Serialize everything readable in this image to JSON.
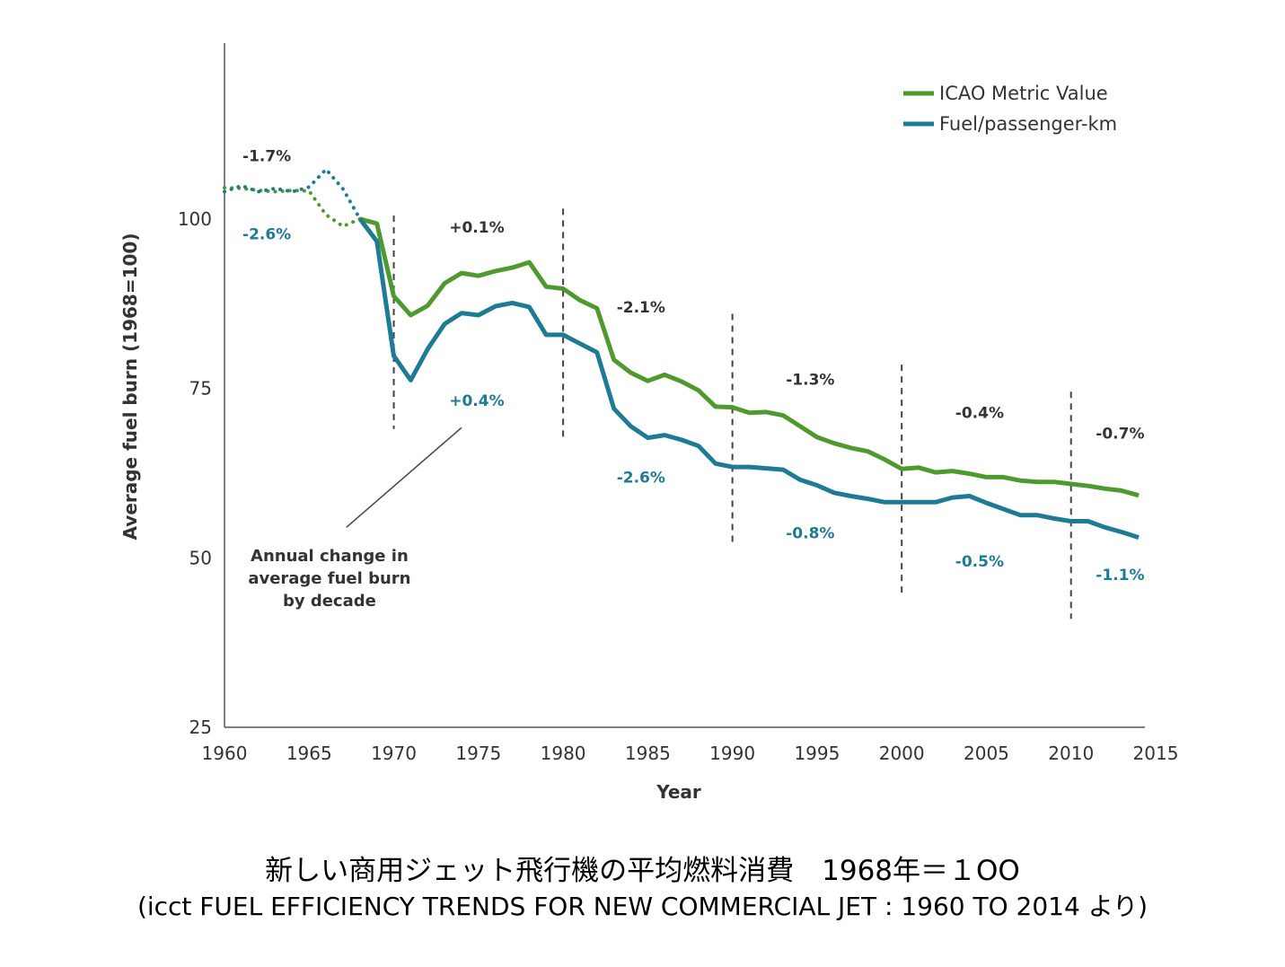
{
  "chart_data": {
    "type": "line",
    "xlabel": "Year",
    "ylabel": "Average fuel burn (1968=100)",
    "xlim": [
      1960,
      2015
    ],
    "ylim": [
      25,
      125
    ],
    "xticks": [
      1960,
      1965,
      1970,
      1975,
      1980,
      1985,
      1990,
      1995,
      2000,
      2005,
      2010,
      2015
    ],
    "yticks": [
      25,
      50,
      75,
      100
    ],
    "grid": false,
    "legend": "top-right",
    "series": [
      {
        "name": "ICAO Metric Value",
        "color": "#4e9a2f",
        "dotted_until": 1968,
        "points": [
          [
            1960,
            104.6
          ],
          [
            1961,
            104.5
          ],
          [
            1962,
            104.2
          ],
          [
            1963,
            104.0
          ],
          [
            1964,
            104.2
          ],
          [
            1965,
            104.1
          ],
          [
            1966,
            100.6
          ],
          [
            1967,
            98.9
          ],
          [
            1968,
            100.0
          ],
          [
            1969,
            99.3
          ],
          [
            1970,
            88.6
          ],
          [
            1971,
            85.8
          ],
          [
            1972,
            87.2
          ],
          [
            1973,
            90.5
          ],
          [
            1974,
            92.0
          ],
          [
            1975,
            91.6
          ],
          [
            1976,
            92.3
          ],
          [
            1977,
            92.8
          ],
          [
            1978,
            93.6
          ],
          [
            1979,
            90.0
          ],
          [
            1980,
            89.7
          ],
          [
            1981,
            88.0
          ],
          [
            1982,
            86.8
          ],
          [
            1983,
            79.2
          ],
          [
            1984,
            77.3
          ],
          [
            1985,
            76.1
          ],
          [
            1986,
            77.0
          ],
          [
            1987,
            76.0
          ],
          [
            1988,
            74.7
          ],
          [
            1989,
            72.3
          ],
          [
            1990,
            72.2
          ],
          [
            1991,
            71.4
          ],
          [
            1992,
            71.5
          ],
          [
            1993,
            71.0
          ],
          [
            1994,
            69.4
          ],
          [
            1995,
            67.8
          ],
          [
            1996,
            66.9
          ],
          [
            1997,
            66.2
          ],
          [
            1998,
            65.7
          ],
          [
            1999,
            64.5
          ],
          [
            2000,
            63.1
          ],
          [
            2001,
            63.3
          ],
          [
            2002,
            62.6
          ],
          [
            2003,
            62.8
          ],
          [
            2004,
            62.4
          ],
          [
            2005,
            61.9
          ],
          [
            2006,
            61.9
          ],
          [
            2007,
            61.4
          ],
          [
            2008,
            61.2
          ],
          [
            2009,
            61.2
          ],
          [
            2010,
            60.9
          ],
          [
            2011,
            60.6
          ],
          [
            2012,
            60.2
          ],
          [
            2013,
            59.9
          ],
          [
            2014,
            59.2
          ]
        ]
      },
      {
        "name": "Fuel/passenger-km",
        "color": "#1f7a93",
        "dotted_until": 1968,
        "points": [
          [
            1960,
            104.0
          ],
          [
            1961,
            104.9
          ],
          [
            1962,
            104.0
          ],
          [
            1963,
            104.5
          ],
          [
            1964,
            104.0
          ],
          [
            1965,
            104.7
          ],
          [
            1966,
            107.3
          ],
          [
            1967,
            104.4
          ],
          [
            1968,
            100.0
          ],
          [
            1969,
            96.7
          ],
          [
            1970,
            79.8
          ],
          [
            1971,
            76.2
          ],
          [
            1972,
            80.8
          ],
          [
            1973,
            84.5
          ],
          [
            1974,
            86.1
          ],
          [
            1975,
            85.8
          ],
          [
            1976,
            87.1
          ],
          [
            1977,
            87.6
          ],
          [
            1978,
            87.0
          ],
          [
            1979,
            82.9
          ],
          [
            1980,
            82.9
          ],
          [
            1981,
            81.6
          ],
          [
            1982,
            80.3
          ],
          [
            1983,
            72.0
          ],
          [
            1984,
            69.4
          ],
          [
            1985,
            67.7
          ],
          [
            1986,
            68.1
          ],
          [
            1987,
            67.4
          ],
          [
            1988,
            66.5
          ],
          [
            1989,
            63.9
          ],
          [
            1990,
            63.4
          ],
          [
            1991,
            63.4
          ],
          [
            1992,
            63.2
          ],
          [
            1993,
            63.0
          ],
          [
            1994,
            61.5
          ],
          [
            1995,
            60.7
          ],
          [
            1996,
            59.6
          ],
          [
            1997,
            59.1
          ],
          [
            1998,
            58.7
          ],
          [
            1999,
            58.2
          ],
          [
            2000,
            58.2
          ],
          [
            2001,
            58.2
          ],
          [
            2002,
            58.2
          ],
          [
            2003,
            58.9
          ],
          [
            2004,
            59.1
          ],
          [
            2005,
            58.1
          ],
          [
            2006,
            57.2
          ],
          [
            2007,
            56.3
          ],
          [
            2008,
            56.3
          ],
          [
            2009,
            55.8
          ],
          [
            2010,
            55.4
          ],
          [
            2011,
            55.4
          ],
          [
            2012,
            54.5
          ],
          [
            2013,
            53.8
          ],
          [
            2014,
            53.0
          ]
        ]
      }
    ],
    "decade_dividers": [
      {
        "year": 1970,
        "from": 69,
        "to": 100.5
      },
      {
        "year": 1980,
        "from": 67.8,
        "to": 101.5
      },
      {
        "year": 1990,
        "from": 52,
        "to": 86
      },
      {
        "year": 2000,
        "from": 44.5,
        "to": 78.5
      },
      {
        "year": 2010,
        "from": 41,
        "to": 74.5
      }
    ],
    "decade_annotations": [
      {
        "year": 1962.5,
        "y": 108.5,
        "series": "ICAO Metric Value",
        "text": "-1.7%"
      },
      {
        "year": 1962.5,
        "y": 97.0,
        "series": "Fuel/passenger-km",
        "text": "-2.6%"
      },
      {
        "year": 1974.9,
        "y": 98.0,
        "series": "ICAO Metric Value",
        "text": "+0.1%"
      },
      {
        "year": 1974.9,
        "y": 72.4,
        "series": "Fuel/passenger-km",
        "text": "+0.4%"
      },
      {
        "year": 1984.6,
        "y": 86.2,
        "series": "ICAO Metric Value",
        "text": "-2.1%"
      },
      {
        "year": 1984.6,
        "y": 61.1,
        "series": "Fuel/passenger-km",
        "text": "-2.6%"
      },
      {
        "year": 1994.6,
        "y": 75.5,
        "series": "ICAO Metric Value",
        "text": "-1.3%"
      },
      {
        "year": 1994.6,
        "y": 52.9,
        "series": "Fuel/passenger-km",
        "text": "-0.8%"
      },
      {
        "year": 2004.6,
        "y": 70.6,
        "series": "ICAO Metric Value",
        "text": "-0.4%"
      },
      {
        "year": 2004.6,
        "y": 48.7,
        "series": "Fuel/passenger-km",
        "text": "-0.5%"
      },
      {
        "year": 2012.9,
        "y": 67.6,
        "series": "ICAO Metric Value",
        "text": "-0.7%"
      },
      {
        "year": 2012.9,
        "y": 46.7,
        "series": "Fuel/passenger-km",
        "text": "-1.1%"
      }
    ],
    "note": {
      "lines": [
        "Annual change in",
        "average fuel burn",
        "by decade"
      ],
      "anchor_year": 1966.2,
      "anchor_y": 49.5,
      "pointer_from": [
        1967.2,
        54.5
      ],
      "pointer_to": [
        1974.0,
        69.2
      ]
    }
  },
  "caption": {
    "line1": "新しい商用ジェット飛行機の平均燃料消費　1968年＝１OO",
    "line2": "(icct FUEL EFFICIENCY TRENDS FOR NEW COMMERCIAL JET : 1960 TO 2014 より)"
  }
}
